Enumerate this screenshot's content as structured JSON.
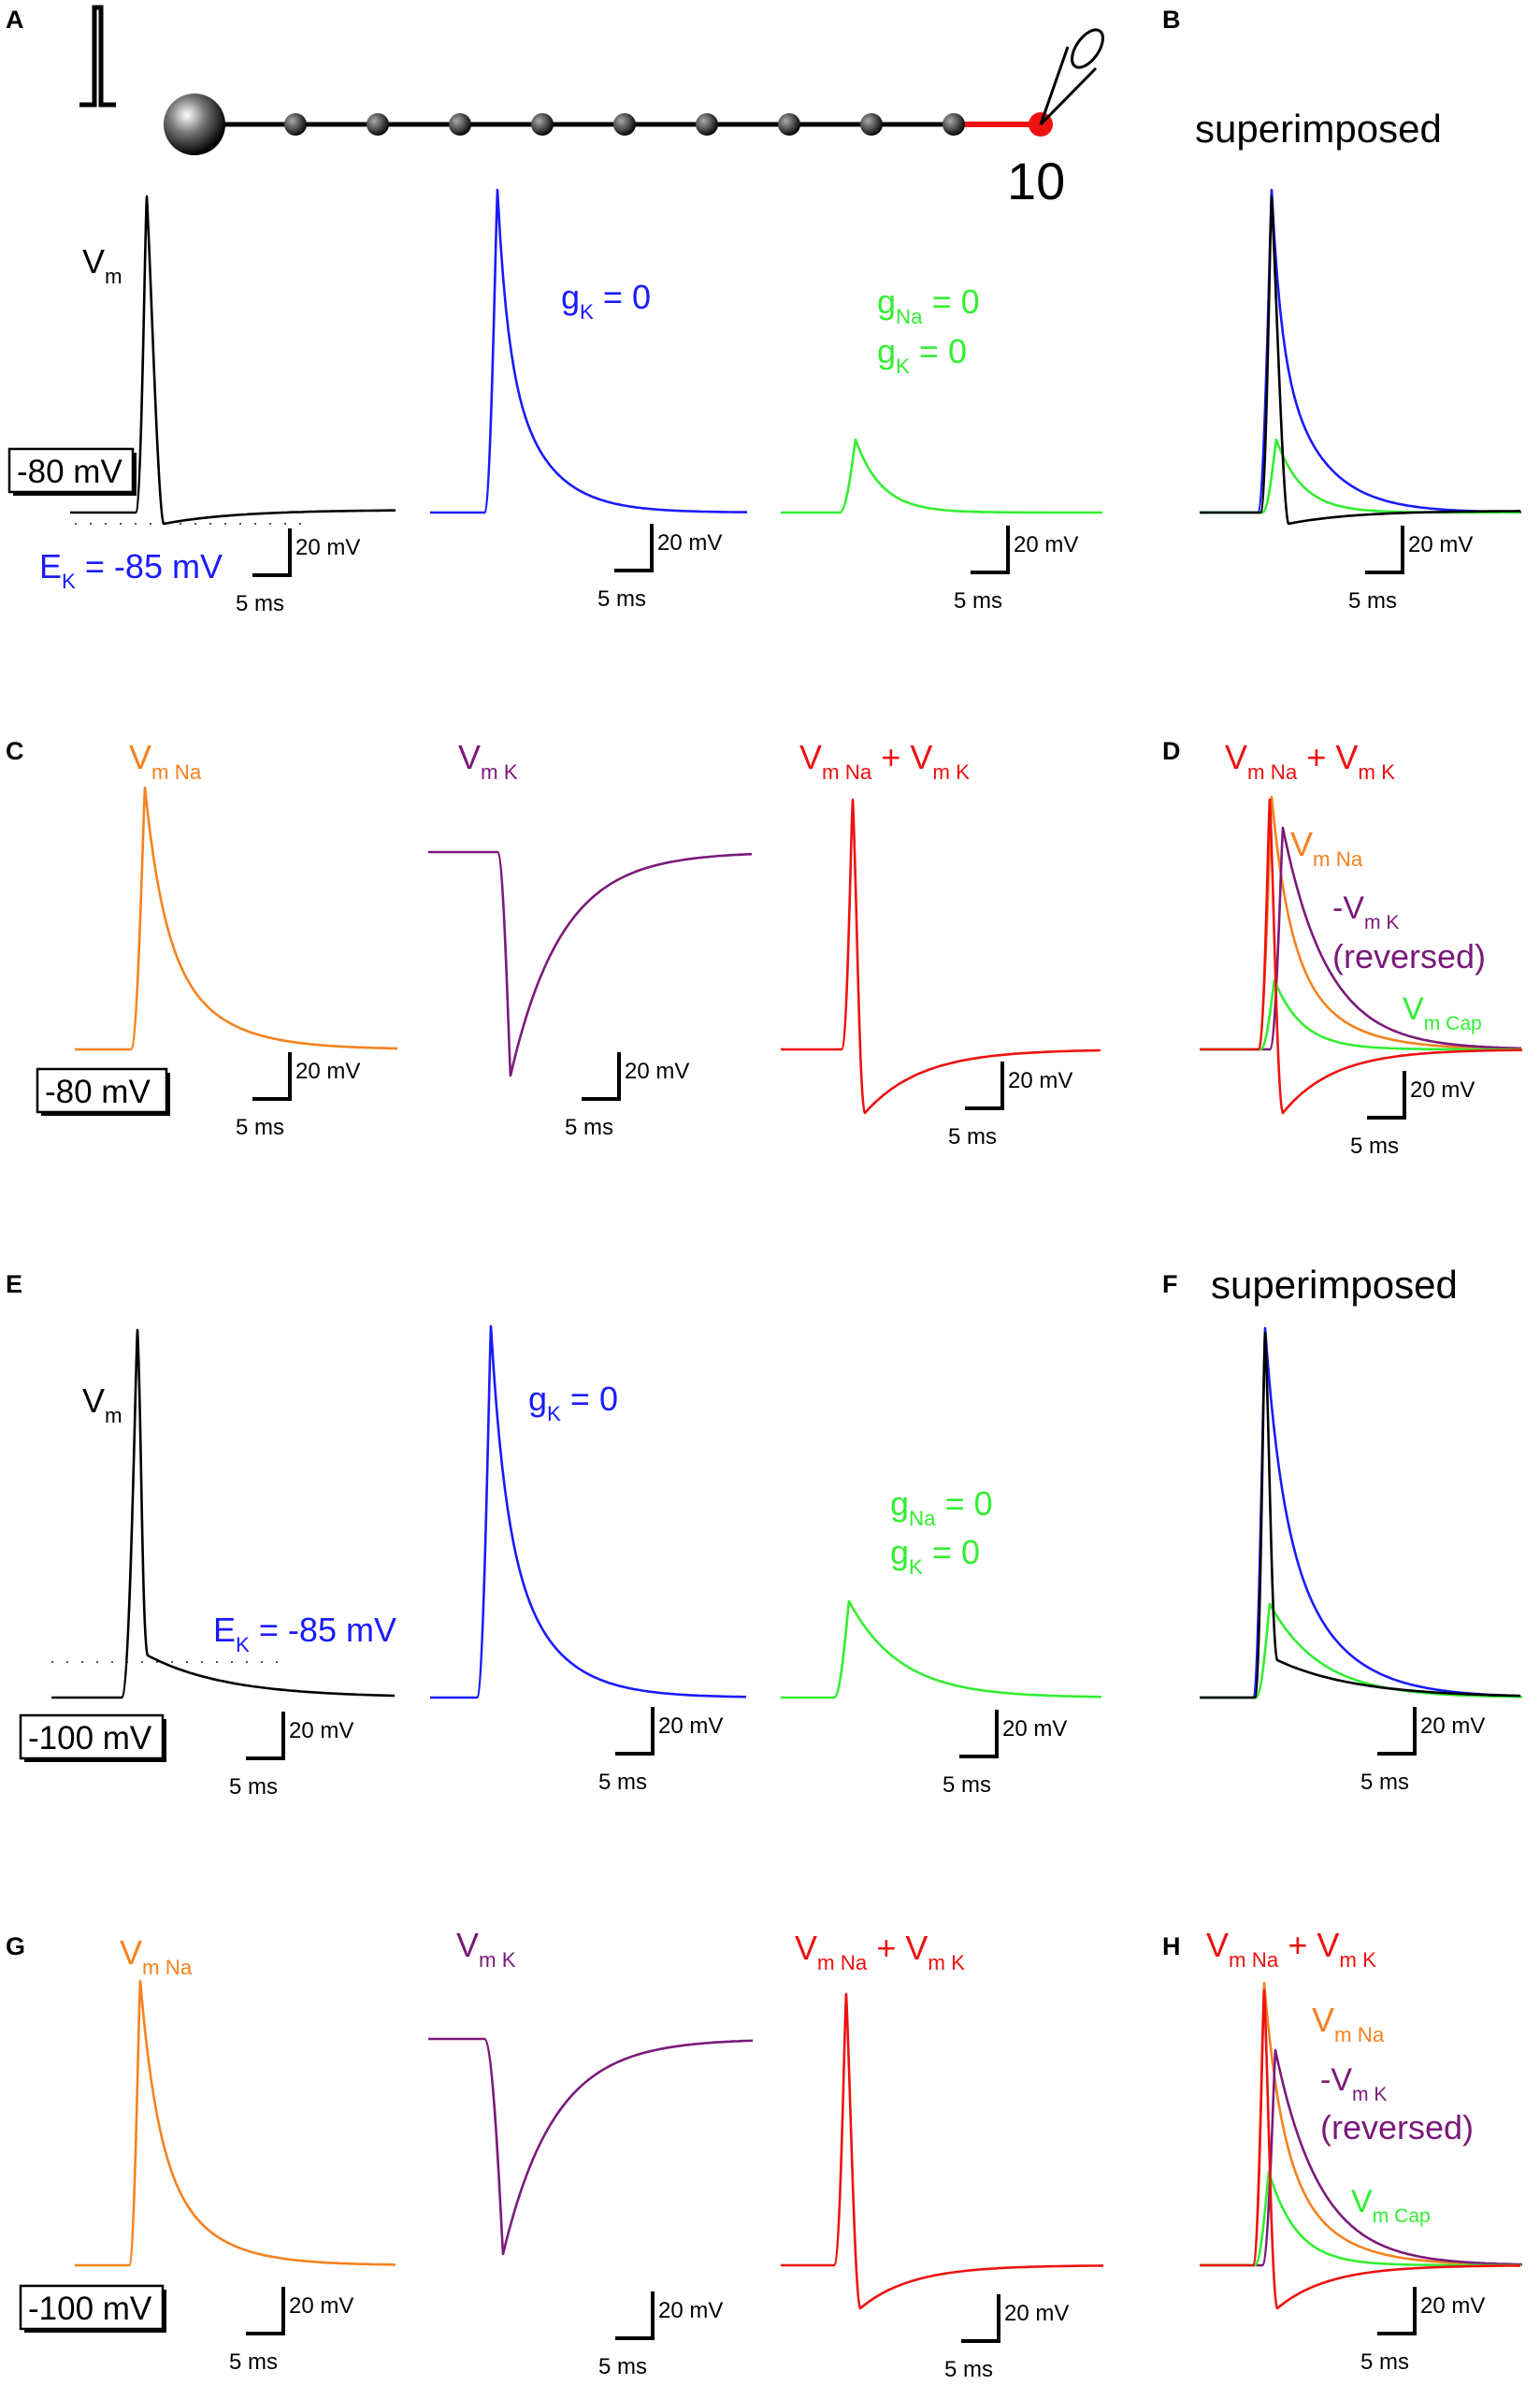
{
  "colors": {
    "vm": "#000000",
    "gk0": "#1a1aff",
    "gna0": "#33ee33",
    "na": "#f5821f",
    "k": "#7a1a7a",
    "sum": "#ee1111",
    "highlight": "#ee1111"
  },
  "panel_labels": [
    "A",
    "B",
    "C",
    "D",
    "E",
    "F",
    "G",
    "H"
  ],
  "morphology": {
    "compartment_label": "10"
  },
  "text": {
    "superimposed": "superimposed",
    "vm": "V",
    "vm_sub": "m",
    "gk0_main": "g",
    "gk0_sub": "K",
    "gk0_val": " = 0",
    "gna0_main": "g",
    "gna0_sub": "Na",
    "gna0_val": " = 0",
    "ek_main": "E",
    "ek_sub": "K",
    "ek_val": " = -85 mV",
    "vmna_main": "V",
    "vmna_sub": "m Na",
    "vmk_main": "V",
    "vmk_sub": "m K",
    "plus": " + ",
    "neg_vmk_main": "-V",
    "reversed": "(reversed)",
    "vmcap_main": "V",
    "vmcap_sub": "m Cap"
  },
  "scale_bar": {
    "voltage": "20 mV",
    "time": "5 ms"
  },
  "baselines": {
    "ace": "-80 mV",
    "eg": "-100 mV"
  }
}
